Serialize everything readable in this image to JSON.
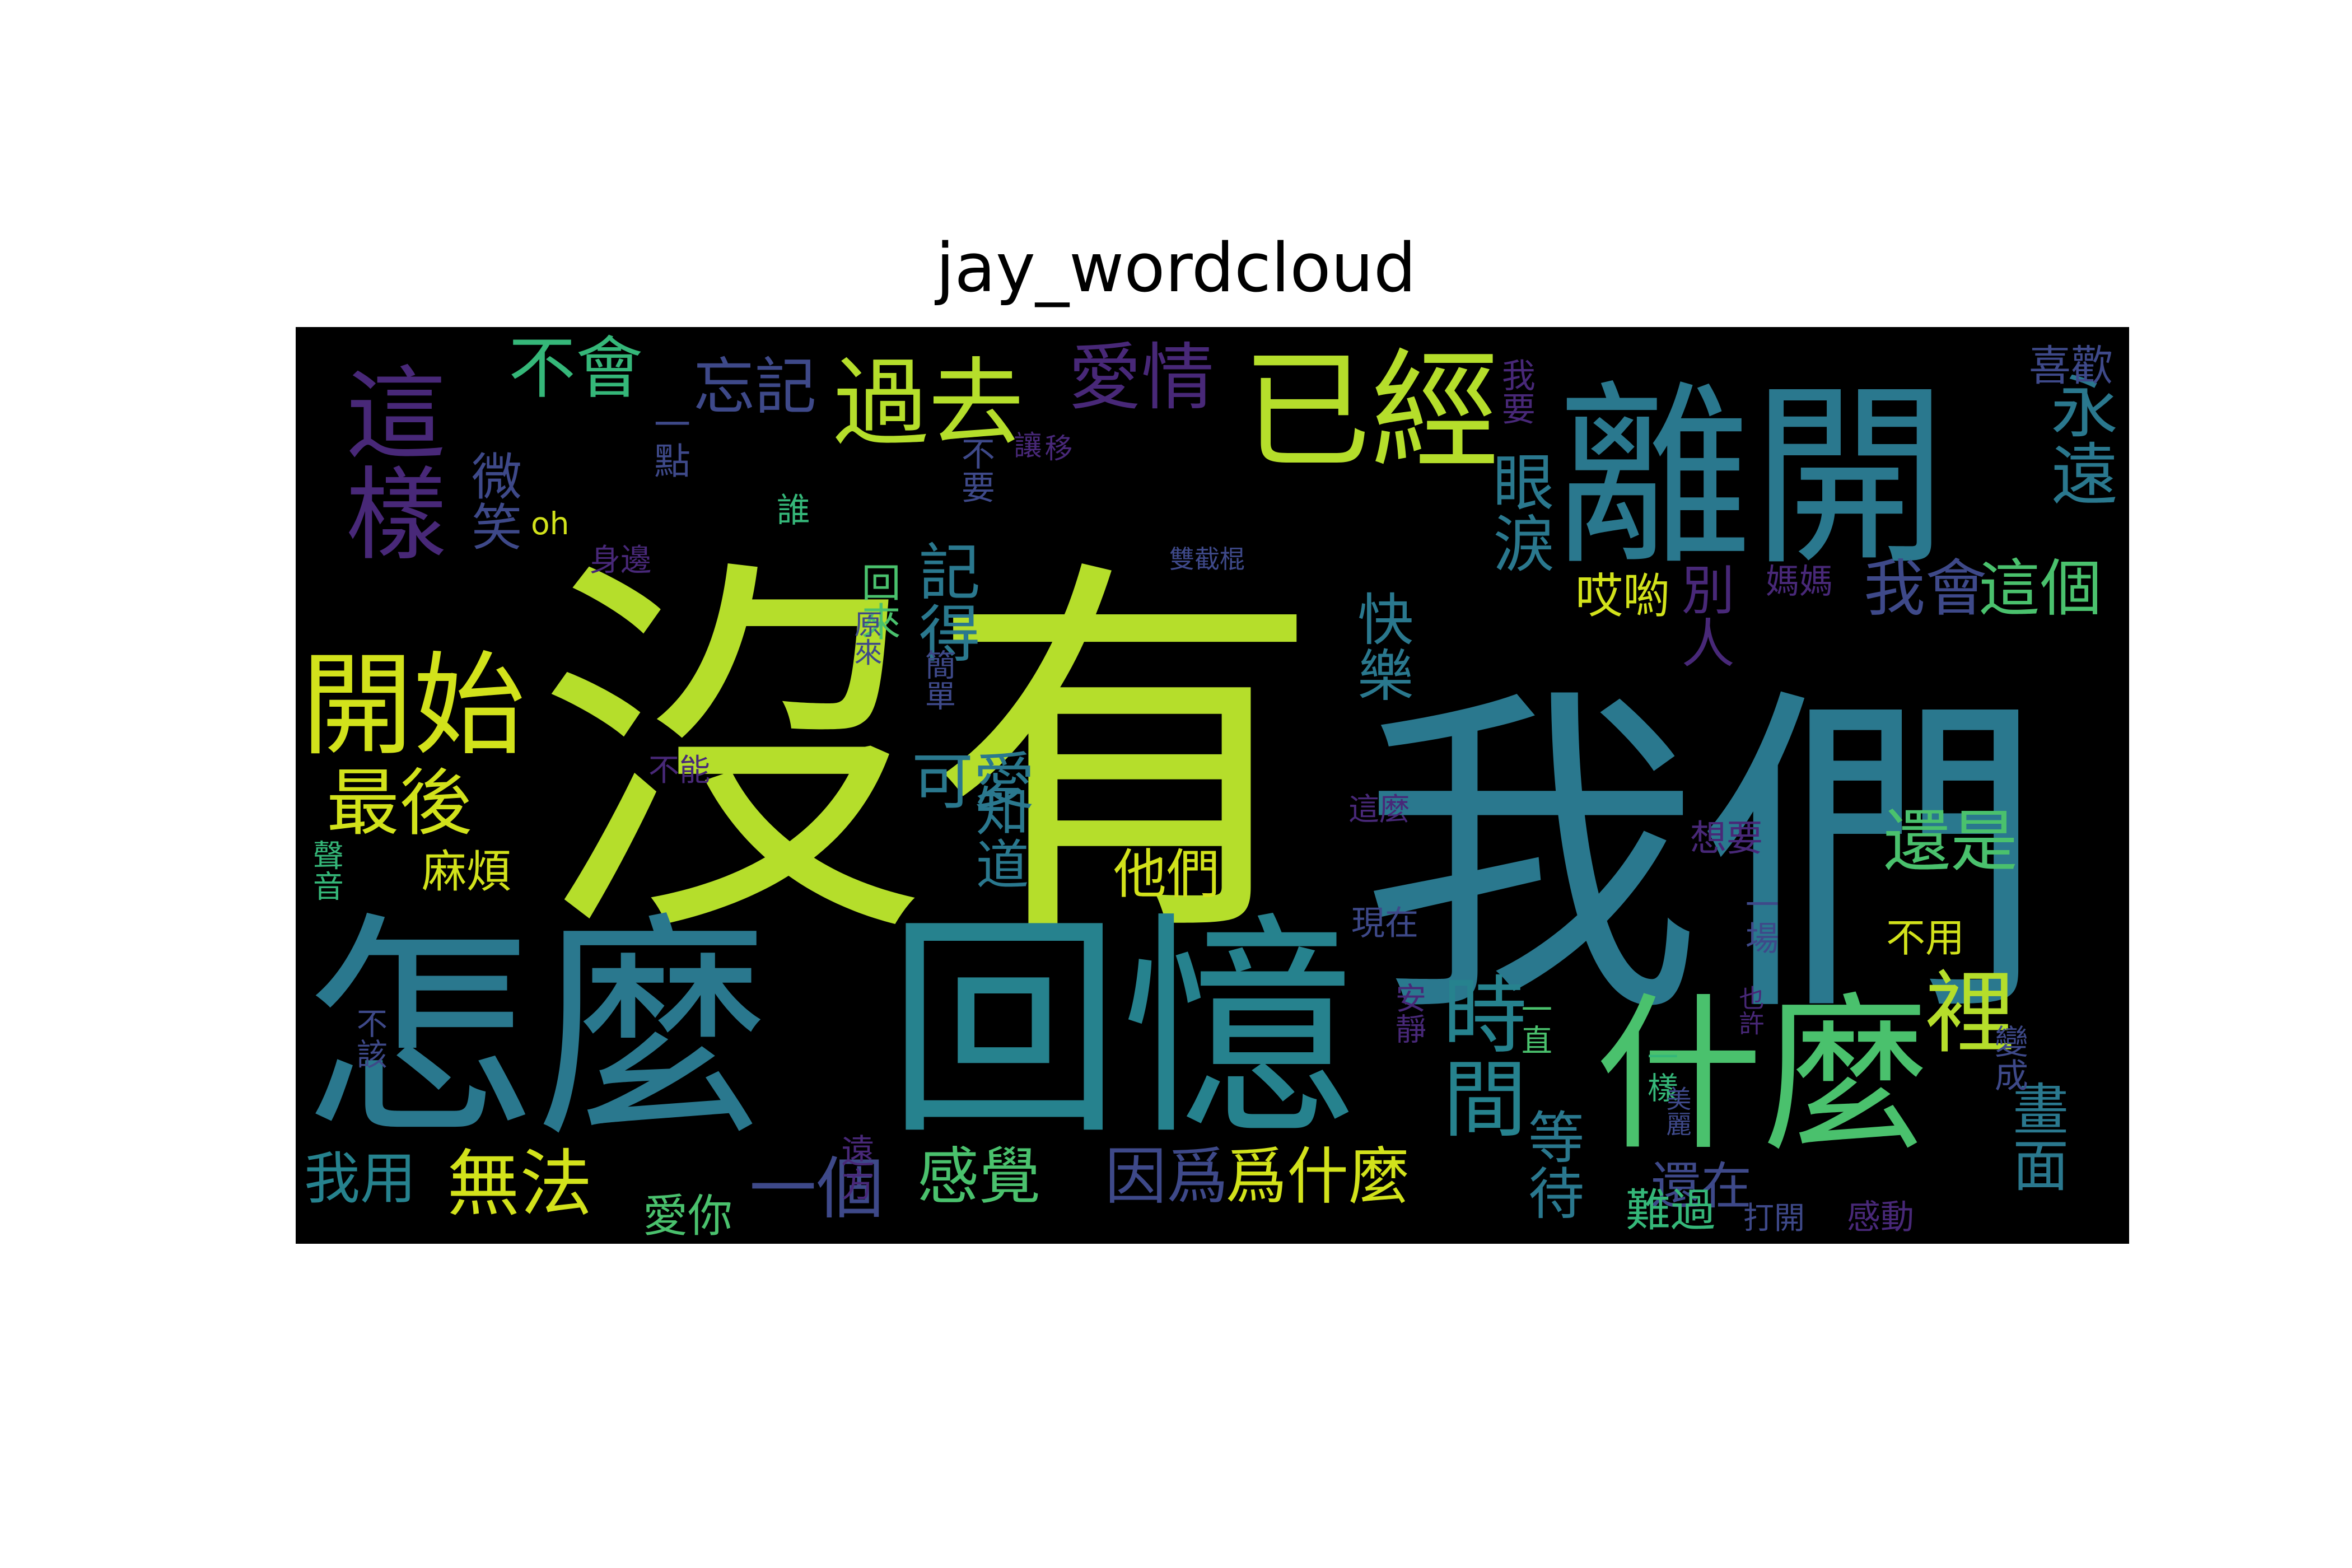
{
  "figure": {
    "title": "jay_wordcloud"
  },
  "wordcloud": {
    "background": "#000000",
    "palette": {
      "lime": "#b5de2b",
      "yellow": "#d2e21b",
      "teal": "#2a788e",
      "cyan": "#26828e",
      "green": "#4ac16d",
      "purple": "#482878",
      "indigo": "#3e4989",
      "mint": "#35b779"
    },
    "words": [
      {
        "text": "沒有",
        "color": "#b5de2b",
        "size": "xl"
      },
      {
        "text": "我們",
        "color": "#2a788e",
        "size": "xl"
      },
      {
        "text": "怎麼",
        "color": "#2a788e",
        "size": "xl"
      },
      {
        "text": "回憶",
        "color": "#26828e",
        "size": "xl"
      },
      {
        "text": "離開",
        "color": "#2a788e",
        "size": "lg"
      },
      {
        "text": "什麼",
        "color": "#4ac16d",
        "size": "lg"
      },
      {
        "text": "已經",
        "color": "#b5de2b",
        "size": "lg"
      },
      {
        "text": "過去",
        "color": "#b5de2b",
        "size": "md"
      },
      {
        "text": "開始",
        "color": "#d2e21b",
        "size": "md"
      },
      {
        "text": "這樣",
        "color": "#482878",
        "size": "md"
      },
      {
        "text": "時間",
        "color": "#26828e",
        "size": "md"
      },
      {
        "text": "裡",
        "color": "#b5de2b",
        "size": "md"
      },
      {
        "text": "愛情",
        "color": "#482878",
        "size": "sm"
      },
      {
        "text": "不會",
        "color": "#35b779",
        "size": "sm"
      },
      {
        "text": "忘記",
        "color": "#3e4989",
        "size": "sm"
      },
      {
        "text": "眼淚",
        "color": "#2a788e",
        "size": "sm"
      },
      {
        "text": "永遠",
        "color": "#2a788e",
        "size": "sm"
      },
      {
        "text": "最後",
        "color": "#d2e21b",
        "size": "sm"
      },
      {
        "text": "我會",
        "color": "#3e4989",
        "size": "sm"
      },
      {
        "text": "這個",
        "color": "#4ac16d",
        "size": "sm"
      },
      {
        "text": "還是",
        "color": "#4ac16d",
        "size": "sm"
      },
      {
        "text": "一個",
        "color": "#3e4989",
        "size": "sm"
      },
      {
        "text": "無法",
        "color": "#d2e21b",
        "size": "sm"
      },
      {
        "text": "感覺",
        "color": "#4ac16d",
        "size": "sm"
      },
      {
        "text": "因爲",
        "color": "#3e4989",
        "size": "sm"
      },
      {
        "text": "爲什麼",
        "color": "#d2e21b",
        "size": "sm"
      },
      {
        "text": "畫面",
        "color": "#2a788e",
        "size": "sm"
      },
      {
        "text": "可愛",
        "color": "#2a788e",
        "size": "sm"
      },
      {
        "text": "知道",
        "color": "#2a788e",
        "size": "sm"
      },
      {
        "text": "記得",
        "color": "#2a788e",
        "size": "sm"
      },
      {
        "text": "快樂",
        "color": "#2a788e",
        "size": "xs"
      },
      {
        "text": "他們",
        "color": "#d2e21b",
        "size": "xs"
      },
      {
        "text": "等待",
        "color": "#2a788e",
        "size": "xs"
      },
      {
        "text": "還在",
        "color": "#3e4989",
        "size": "xs"
      },
      {
        "text": "別人",
        "color": "#482878",
        "size": "xs"
      },
      {
        "text": "微笑",
        "color": "#3e4989",
        "size": "xs"
      },
      {
        "text": "麻煩",
        "color": "#d2e21b",
        "size": "xxs"
      },
      {
        "text": "我用",
        "color": "#26828e",
        "size": "xs"
      },
      {
        "text": "愛你",
        "color": "#4ac16d",
        "size": "xxs"
      },
      {
        "text": "難過",
        "color": "#35b779",
        "size": "xxs"
      },
      {
        "text": "哎喲",
        "color": "#d2e21b",
        "size": "xxs"
      },
      {
        "text": "喜歡",
        "color": "#3e4989",
        "size": "xxs"
      },
      {
        "text": "媽媽",
        "color": "#482878",
        "size": "xxs"
      },
      {
        "text": "一點",
        "color": "#3e4989",
        "size": "xxs"
      },
      {
        "text": "不要",
        "color": "#3e4989",
        "size": "xxs"
      },
      {
        "text": "我要",
        "color": "#482878",
        "size": "xxs"
      },
      {
        "text": "遠方",
        "color": "#482878",
        "size": "xxs"
      },
      {
        "text": "不用",
        "color": "#d2e21b",
        "size": "xxs"
      },
      {
        "text": "現在",
        "color": "#3e4989",
        "size": "xxs"
      },
      {
        "text": "想要",
        "color": "#482878",
        "size": "xxs"
      },
      {
        "text": "這麼",
        "color": "#482878",
        "size": "xxs"
      },
      {
        "text": "不能",
        "color": "#482878",
        "size": "xxs"
      },
      {
        "text": "不該",
        "color": "#3e4989",
        "size": "xxs"
      },
      {
        "text": "安靜",
        "color": "#482878",
        "size": "xxs"
      },
      {
        "text": "一直",
        "color": "#4ac16d",
        "size": "xxs"
      },
      {
        "text": "一場",
        "color": "#3e4989",
        "size": "xxs"
      },
      {
        "text": "變成",
        "color": "#3e4989",
        "size": "xxs"
      },
      {
        "text": "感動",
        "color": "#482878",
        "size": "xxs"
      },
      {
        "text": "打開",
        "color": "#3e4989",
        "size": "xxs"
      },
      {
        "text": "簡單",
        "color": "#3e4989",
        "size": "xxs"
      },
      {
        "text": "身邊",
        "color": "#482878",
        "size": "xxs"
      },
      {
        "text": "oh",
        "color": "#d2e21b",
        "size": "xxs"
      },
      {
        "text": "回來",
        "color": "#4ac16d",
        "size": "xxs"
      },
      {
        "text": "原來",
        "color": "#3e4989",
        "size": "xxs"
      },
      {
        "text": "誰",
        "color": "#35b779",
        "size": "xxs"
      },
      {
        "text": "讓",
        "color": "#482878",
        "size": "xxs"
      },
      {
        "text": "移",
        "color": "#482878",
        "size": "xxs"
      },
      {
        "text": "聲音",
        "color": "#35b779",
        "size": "xxs"
      },
      {
        "text": "也許",
        "color": "#482878",
        "size": "xxs"
      },
      {
        "text": "一樣",
        "color": "#35b779",
        "size": "xxs"
      },
      {
        "text": "美麗",
        "color": "#3e4989",
        "size": "xxs"
      },
      {
        "text": "雙截棍",
        "color": "#3e4989",
        "size": "xxs"
      }
    ]
  }
}
